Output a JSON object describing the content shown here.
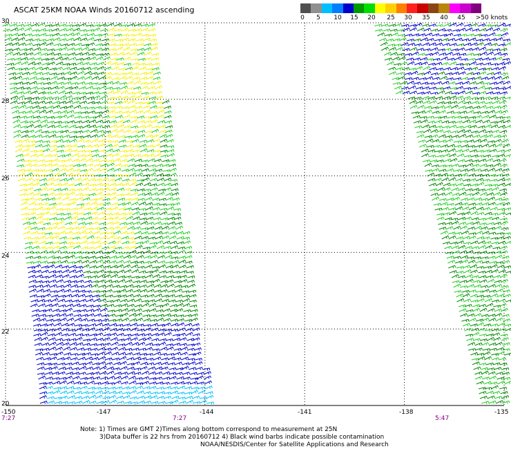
{
  "title": "ASCAT 25KM NOAA Winds 20160712 ascending",
  "legend": {
    "labels": [
      "0",
      "5",
      "10",
      "15",
      "20",
      "25",
      "30",
      "35",
      "40",
      "45",
      ">50 knots"
    ],
    "colors": [
      "#505050",
      "#909090",
      "#00bfff",
      "#0080ff",
      "#0000cd",
      "#009900",
      "#00dd00",
      "#ffff00",
      "#ffd000",
      "#ff8000",
      "#ff2020",
      "#cc0000",
      "#8b4513",
      "#b8860b",
      "#ff00ff",
      "#cc00cc",
      "#800080"
    ]
  },
  "map": {
    "lon_range": [
      -150,
      -135
    ],
    "lat_range": [
      20,
      30
    ],
    "lon_ticks": [
      "-150",
      "-147",
      "-144",
      "-141",
      "-138",
      "-135"
    ],
    "lat_ticks": [
      "30",
      "28",
      "26",
      "24",
      "22",
      "20"
    ],
    "lon_tick_values": [
      -150,
      -147,
      -144,
      -141,
      -138,
      -135
    ],
    "lat_tick_values": [
      30,
      28,
      26,
      24,
      22,
      20
    ],
    "grid": "dotted",
    "swath_colors": {
      "blue": "#0000cc",
      "cyan": "#00bfff",
      "darkgreen": "#008800",
      "green": "#22cc22",
      "yellow": "#f5f000"
    }
  },
  "time_labels": [
    "7:27",
    "7:27",
    "5:47"
  ],
  "notes": {
    "line1": "Note: 1) Times are GMT 2)Times along bottom correspond to measurement at 25N",
    "line2": "3)Data buffer is 22 hrs from 20160712 4) Black wind barbs indicate possible contamination",
    "line3": "NOAA/NESDIS/Center for Satellite Applications and Research"
  }
}
